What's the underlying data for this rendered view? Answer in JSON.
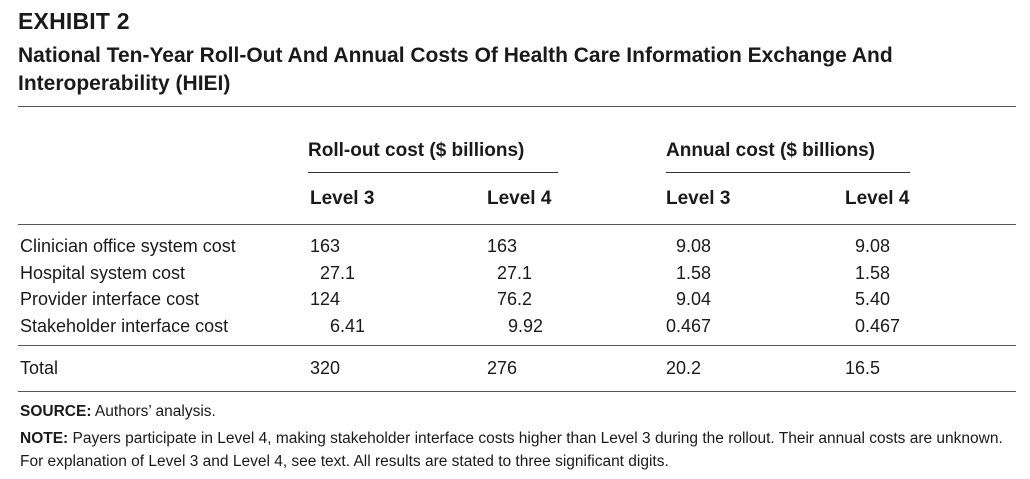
{
  "exhibit": {
    "label": "EXHIBIT 2",
    "title": "National Ten-Year Roll-Out And Annual Costs Of Health Care Information Exchange And Interoperability (HIEI)"
  },
  "table": {
    "group_headers": [
      "Roll-out cost ($ billions)",
      "Annual cost ($ billions)"
    ],
    "level_headers": [
      "Level 3",
      "Level 4",
      "Level 3",
      "Level 4"
    ],
    "rows": [
      {
        "label": "Clinician office system cost",
        "values": [
          "163",
          "163",
          "9.08",
          "9.08"
        ]
      },
      {
        "label": "Hospital system cost",
        "values": [
          "27.1",
          "27.1",
          "1.58",
          "1.58"
        ]
      },
      {
        "label": "Provider interface cost",
        "values": [
          "124",
          "76.2",
          "9.04",
          "5.40"
        ]
      },
      {
        "label": "Stakeholder interface cost",
        "values": [
          "6.41",
          "9.92",
          "0.467",
          "0.467"
        ]
      }
    ],
    "total": {
      "label": "Total",
      "values": [
        "320",
        "276",
        "20.2",
        "16.5"
      ]
    }
  },
  "footnotes": {
    "source_label": "SOURCE:",
    "source_text": " Authors’ analysis.",
    "note_label": "NOTE:",
    "note_text": " Payers participate in Level 4, making stakeholder interface costs higher than Level 3 during the rollout.  Their annual costs are unknown. For explanation of Level 3 and Level 4, see text. All results are stated to three significant digits."
  }
}
